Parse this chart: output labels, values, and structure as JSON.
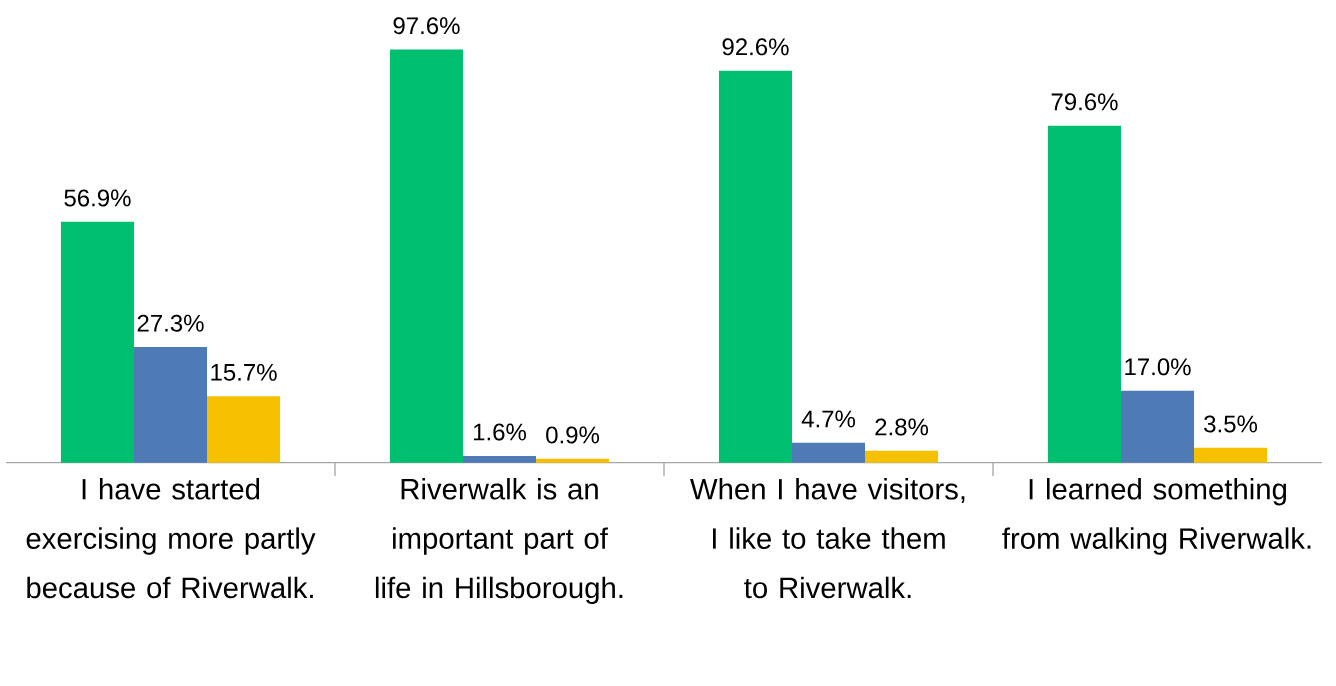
{
  "chart_data": {
    "type": "bar",
    "categories": [
      "I have started exercising more partly because of Riverwalk.",
      "Riverwalk is an important part of life in Hillsborough.",
      "When I have visitors, I like to take them to Riverwalk.",
      "I learned something from walking Riverwalk."
    ],
    "series": [
      {
        "color": "#00bf6f",
        "values": [
          56.9,
          97.6,
          92.6,
          79.6
        ],
        "value_labels": [
          "56.9%",
          "97.6%",
          "92.6%",
          "79.6%"
        ]
      },
      {
        "color": "#4e7ab5",
        "values": [
          27.3,
          1.6,
          4.7,
          17.0
        ],
        "value_labels": [
          "27.3%",
          "1.6%",
          "4.7%",
          "17.0%"
        ]
      },
      {
        "color": "#f5c000",
        "values": [
          15.7,
          0.9,
          2.8,
          3.5
        ],
        "value_labels": [
          "15.7%",
          "0.9%",
          "2.8%",
          "3.5%"
        ]
      }
    ]
  }
}
